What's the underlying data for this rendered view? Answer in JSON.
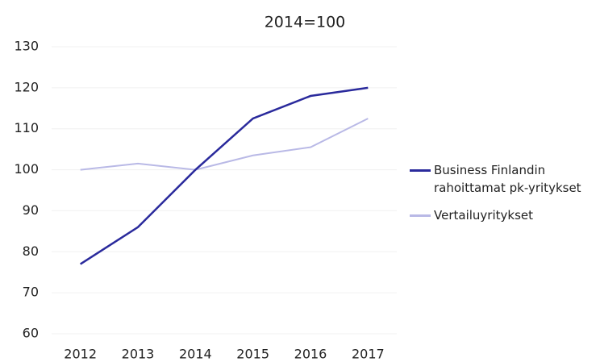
{
  "chart_data": {
    "type": "line",
    "title": "2014=100",
    "categories": [
      "2012",
      "2013",
      "2014",
      "2015",
      "2016",
      "2017"
    ],
    "series": [
      {
        "name": "Business Finlandin rahoittamat pk-yritykset",
        "color": "#2a2a9c",
        "values": [
          77,
          86,
          100,
          112.5,
          118,
          120
        ]
      },
      {
        "name": "Vertailuyritykset",
        "color": "#b9b9e6",
        "values": [
          100,
          101.5,
          100,
          103.5,
          105.5,
          112.5
        ]
      }
    ],
    "ylim": [
      60,
      130
    ],
    "yticks": [
      60,
      70,
      80,
      90,
      100,
      110,
      120,
      130
    ],
    "grid": true,
    "legend": "right"
  }
}
